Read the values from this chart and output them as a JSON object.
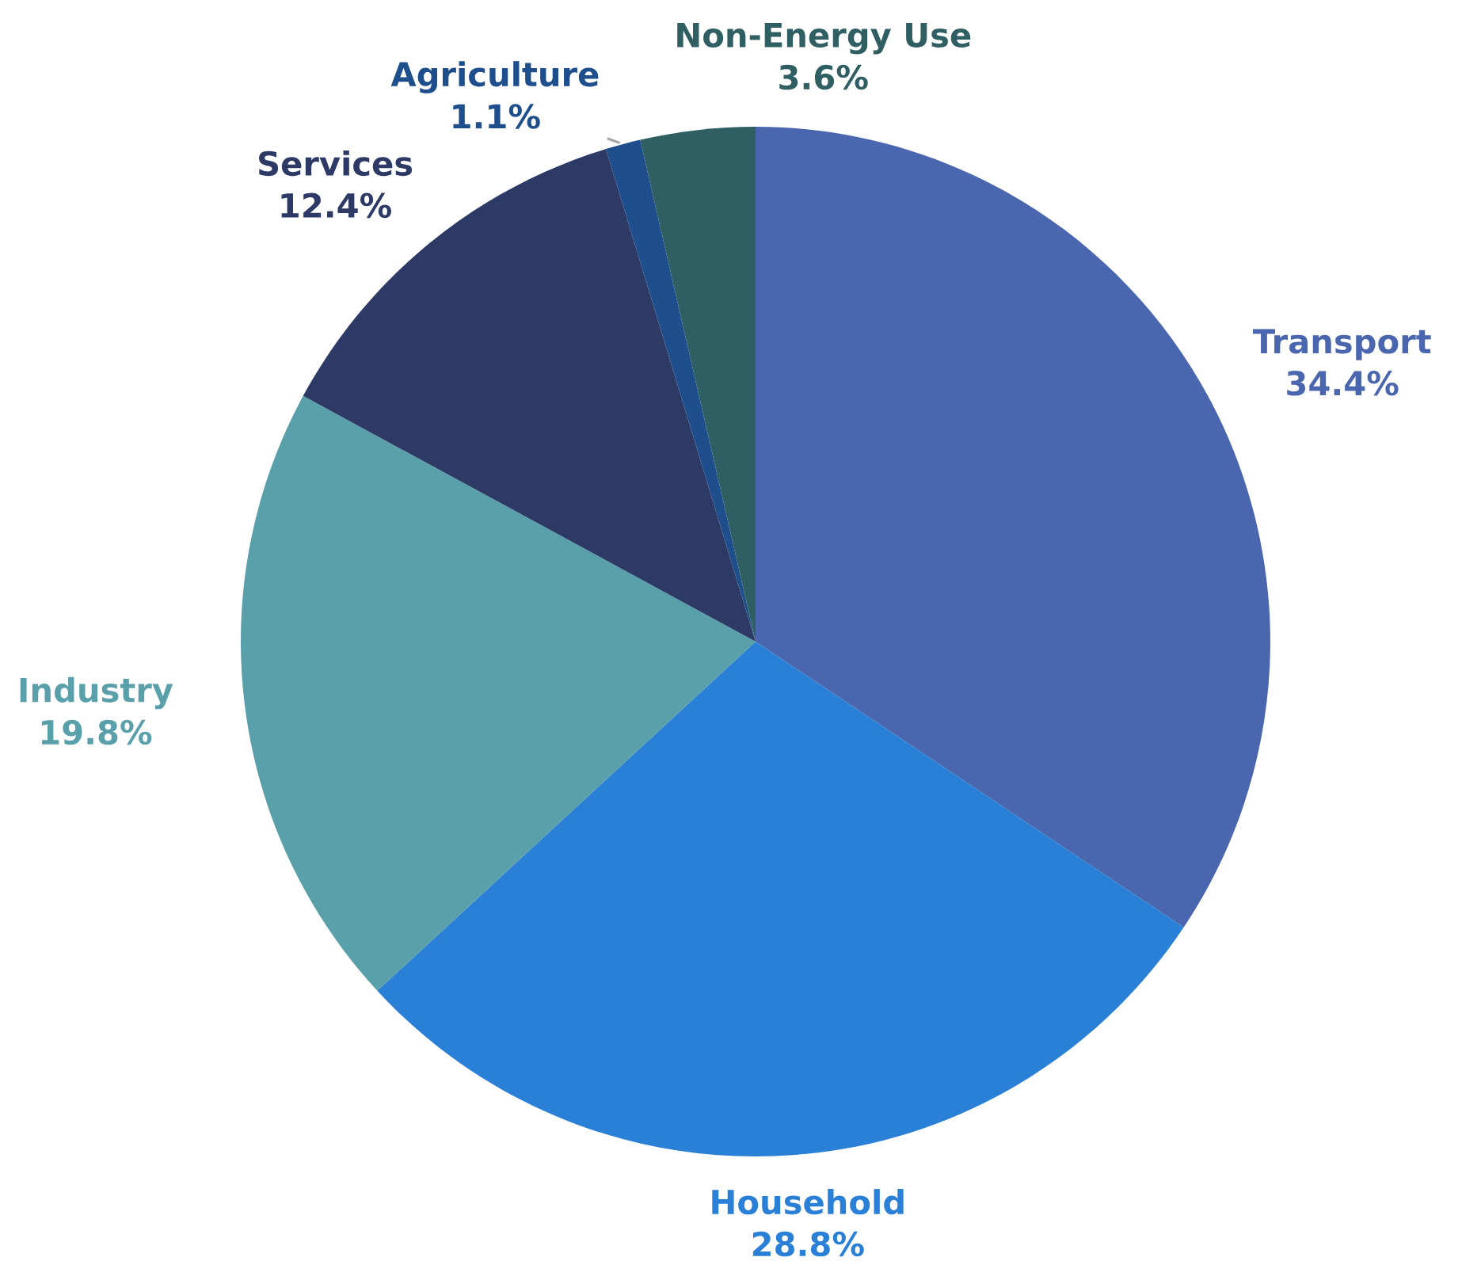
{
  "chart_data": {
    "type": "pie",
    "categories": [
      "Transport",
      "Household",
      "Industry",
      "Services",
      "Agriculture",
      "Non-Energy Use"
    ],
    "values": [
      34.4,
      28.8,
      19.8,
      12.4,
      1.1,
      3.6
    ],
    "value_labels": [
      "34.4%",
      "28.8%",
      "19.8%",
      "12.4%",
      "1.1%",
      "3.6%"
    ],
    "colors": [
      "#4a66ae",
      "#2a7fd6",
      "#5aa0ab",
      "#2d3a66",
      "#1f4e8c",
      "#2f5e63"
    ],
    "legend": false
  }
}
